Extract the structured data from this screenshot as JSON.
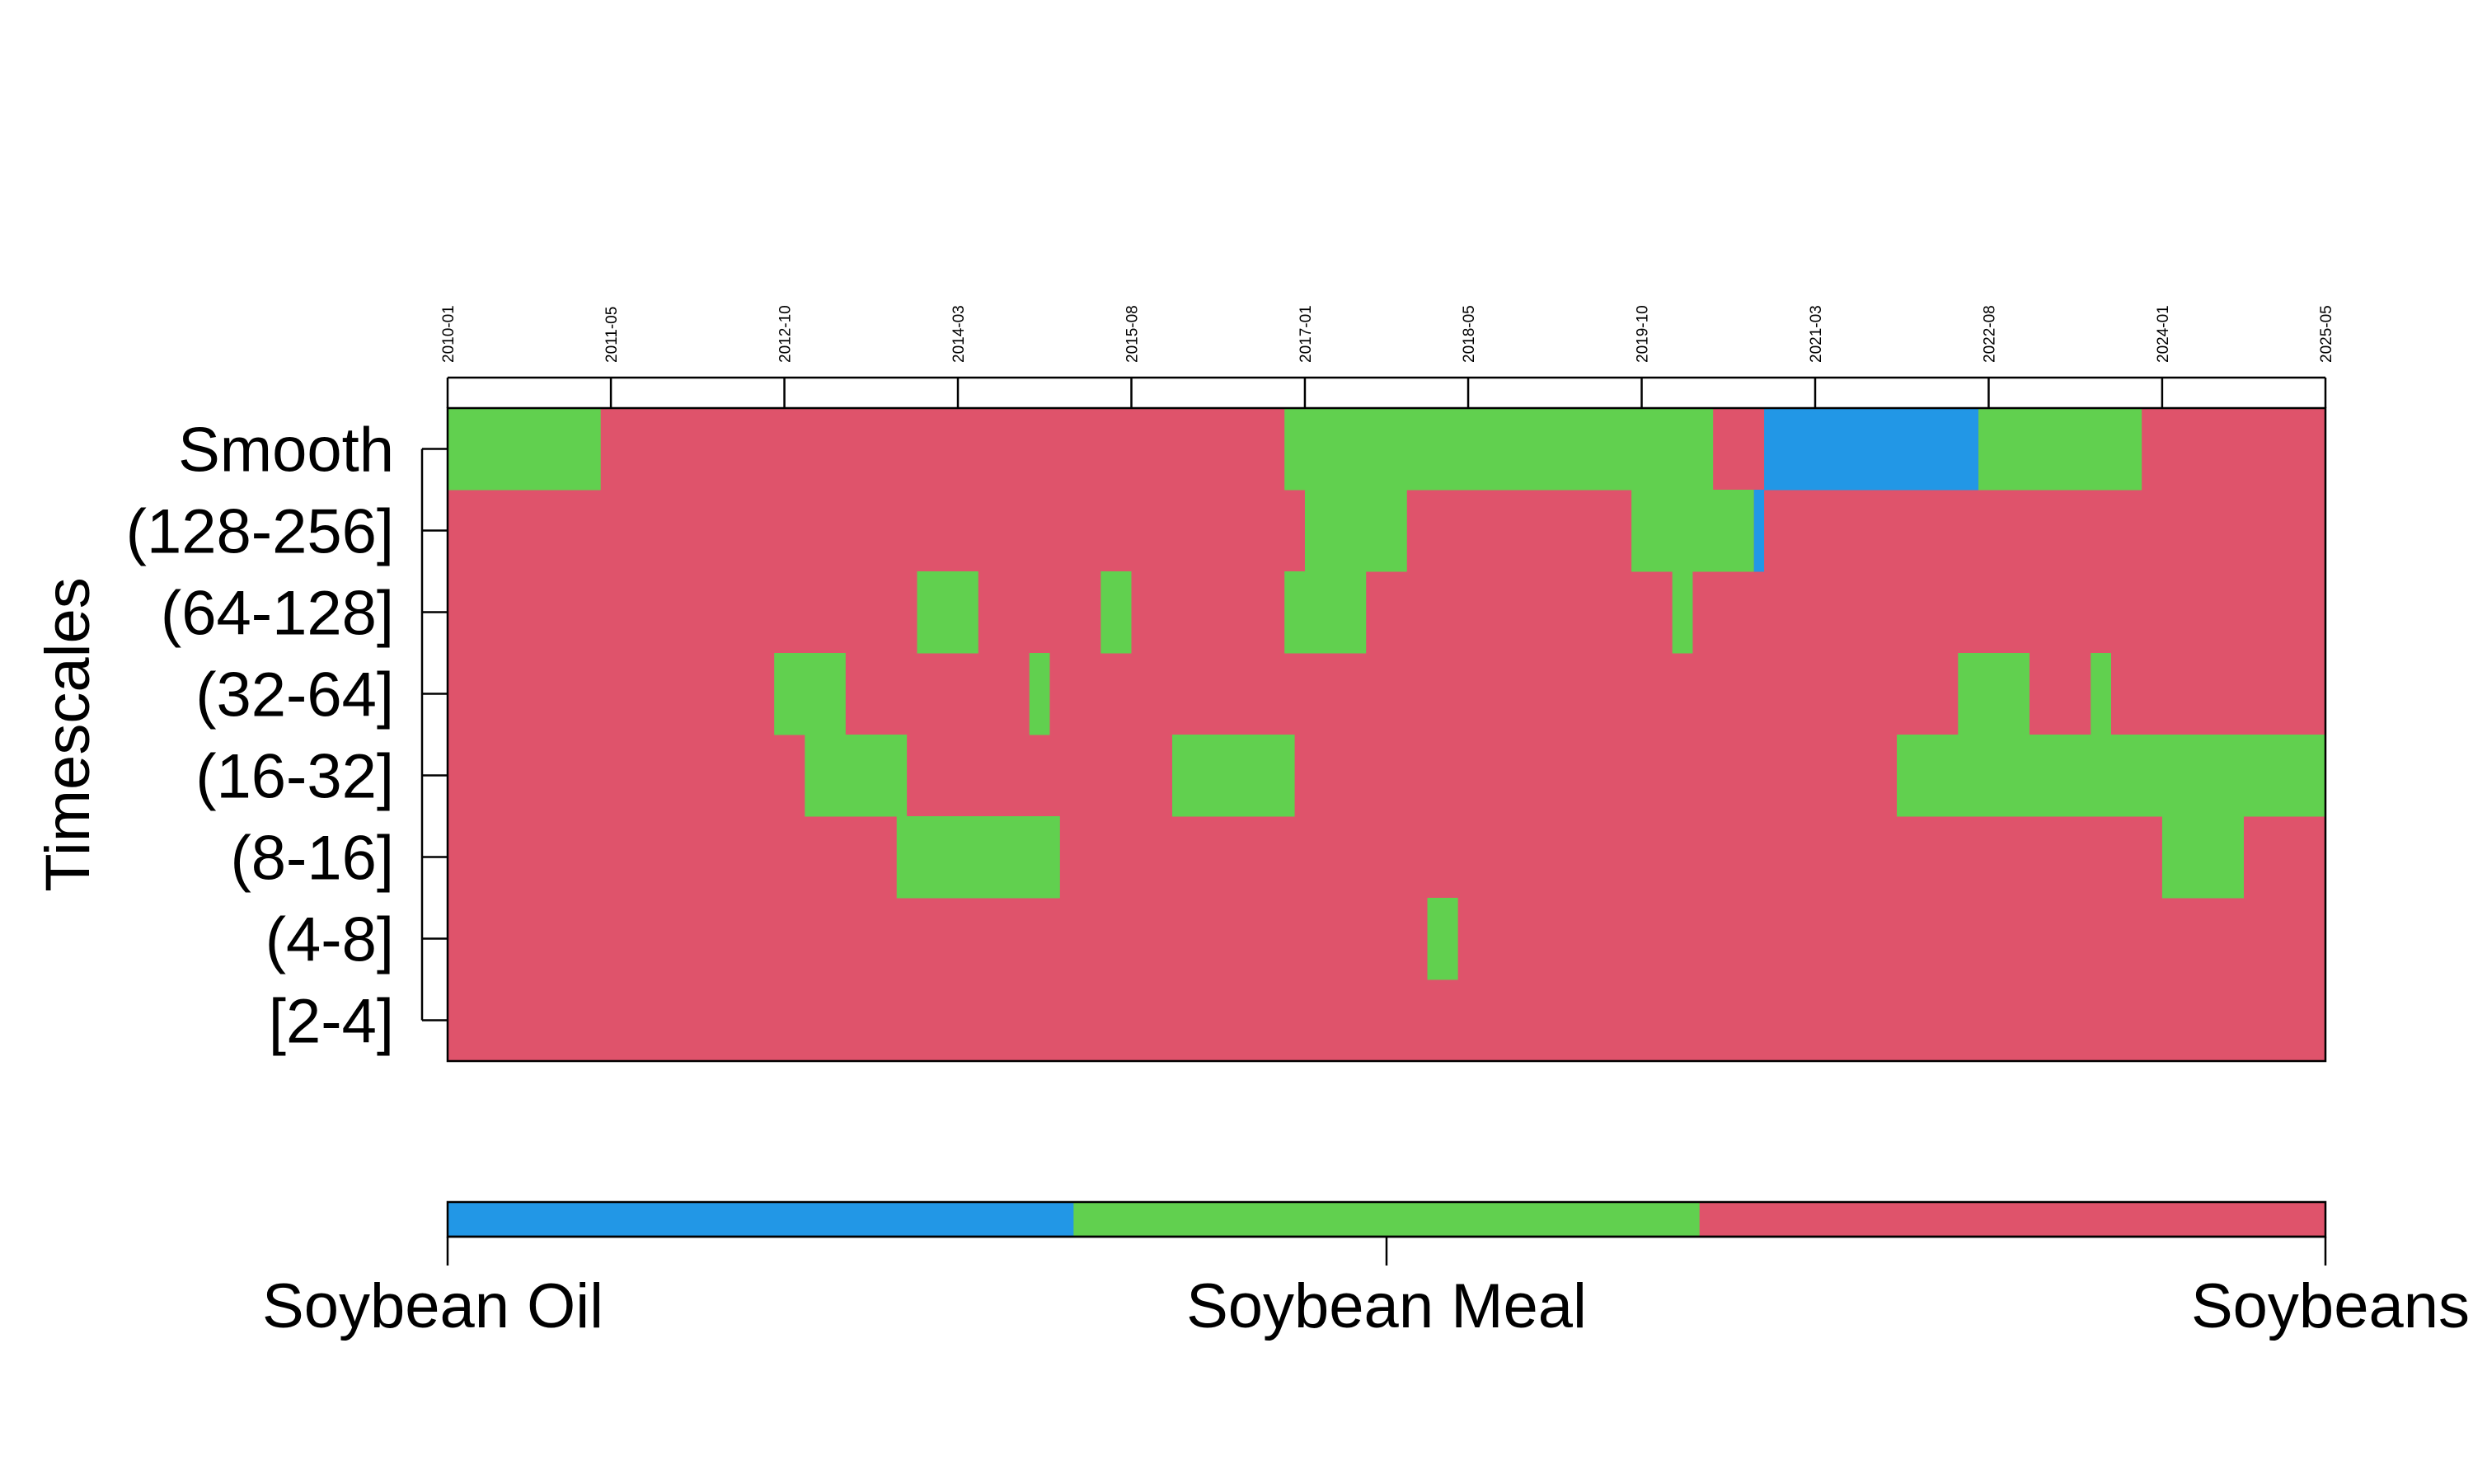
{
  "chart_data": {
    "type": "heatmap",
    "title": "",
    "ylabel": "Timescales",
    "xlabel": "",
    "x_range": [
      "2010-01",
      "2025-05"
    ],
    "x_ticks": [
      "2010-01",
      "2011-05",
      "2012-10",
      "2014-03",
      "2015-08",
      "2017-01",
      "2018-05",
      "2019-10",
      "2021-03",
      "2022-08",
      "2024-01",
      "2025-05"
    ],
    "rows": [
      "Smooth",
      "(128-256]",
      "(64-128]",
      "(32-64]",
      "(16-32]",
      "(8-16]",
      "(4-8]",
      "[2-4]"
    ],
    "categories": [
      {
        "name": "Soybean Oil",
        "color": "#2297E6"
      },
      {
        "name": "Soybean Meal",
        "color": "#61D04F"
      },
      {
        "name": "Soybeans",
        "color": "#DF536B"
      }
    ],
    "background_category": "Soybeans",
    "segments": [
      {
        "row": "Smooth",
        "start": "2010-01",
        "end": "2011-04",
        "category": "Soybean Meal"
      },
      {
        "row": "Smooth",
        "start": "2016-11",
        "end": "2020-05",
        "category": "Soybean Meal"
      },
      {
        "row": "Smooth",
        "start": "2020-10",
        "end": "2022-07",
        "category": "Soybean Oil"
      },
      {
        "row": "Smooth",
        "start": "2022-07",
        "end": "2023-11",
        "category": "Soybean Meal"
      },
      {
        "row": "(128-256]",
        "start": "2017-01",
        "end": "2017-11",
        "category": "Soybean Meal"
      },
      {
        "row": "(128-256]",
        "start": "2019-09",
        "end": "2020-09",
        "category": "Soybean Meal"
      },
      {
        "row": "(128-256]",
        "start": "2020-09",
        "end": "2020-10",
        "category": "Soybean Oil"
      },
      {
        "row": "(64-128]",
        "start": "2013-11",
        "end": "2014-05",
        "category": "Soybean Meal"
      },
      {
        "row": "(64-128]",
        "start": "2015-05",
        "end": "2015-08",
        "category": "Soybean Meal"
      },
      {
        "row": "(64-128]",
        "start": "2016-11",
        "end": "2017-07",
        "category": "Soybean Meal"
      },
      {
        "row": "(64-128]",
        "start": "2020-01",
        "end": "2020-03",
        "category": "Soybean Meal"
      },
      {
        "row": "(32-64]",
        "start": "2012-09",
        "end": "2013-04",
        "category": "Soybean Meal"
      },
      {
        "row": "(32-64]",
        "start": "2014-10",
        "end": "2014-12",
        "category": "Soybean Meal"
      },
      {
        "row": "(32-64]",
        "start": "2022-05",
        "end": "2022-12",
        "category": "Soybean Meal"
      },
      {
        "row": "(32-64]",
        "start": "2023-06",
        "end": "2023-08",
        "category": "Soybean Meal"
      },
      {
        "row": "(16-32]",
        "start": "2012-12",
        "end": "2013-10",
        "category": "Soybean Meal"
      },
      {
        "row": "(16-32]",
        "start": "2015-12",
        "end": "2016-12",
        "category": "Soybean Meal"
      },
      {
        "row": "(16-32]",
        "start": "2021-11",
        "end": "2025-05",
        "category": "Soybean Meal"
      },
      {
        "row": "(8-16]",
        "start": "2013-09",
        "end": "2015-01",
        "category": "Soybean Meal"
      },
      {
        "row": "(8-16]",
        "start": "2024-01",
        "end": "2024-09",
        "category": "Soybean Meal"
      },
      {
        "row": "(4-8]",
        "start": "2018-01",
        "end": "2018-04",
        "category": "Soybean Meal"
      }
    ]
  }
}
